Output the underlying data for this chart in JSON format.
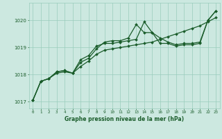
{
  "title": "Graphe pression niveau de la mer (hPa)",
  "background_color": "#cce8e0",
  "grid_color": "#99ccbb",
  "line_color": "#1a5c2a",
  "xlim": [
    -0.5,
    23.5
  ],
  "ylim": [
    1016.75,
    1020.65
  ],
  "yticks": [
    1017,
    1018,
    1019,
    1020
  ],
  "xticks": [
    0,
    1,
    2,
    3,
    4,
    5,
    6,
    7,
    8,
    9,
    10,
    11,
    12,
    13,
    14,
    15,
    16,
    17,
    18,
    19,
    20,
    21,
    22,
    23
  ],
  "series1_x": [
    0,
    1,
    2,
    3,
    4,
    5,
    6,
    7,
    8,
    9,
    10,
    11,
    12,
    13,
    14,
    15,
    16,
    17,
    18,
    19,
    20,
    21,
    22,
    23
  ],
  "series1_y": [
    1017.05,
    1017.75,
    1017.85,
    1018.05,
    1018.1,
    1018.05,
    1018.3,
    1018.5,
    1018.75,
    1018.9,
    1018.95,
    1019.0,
    1019.05,
    1019.1,
    1019.15,
    1019.2,
    1019.3,
    1019.4,
    1019.5,
    1019.6,
    1019.7,
    1019.8,
    1019.95,
    1020.1
  ],
  "series2_x": [
    0,
    1,
    2,
    3,
    4,
    5,
    6,
    7,
    8,
    9,
    10,
    11,
    12,
    13,
    14,
    15,
    16,
    17,
    18,
    19,
    20,
    21,
    22,
    23
  ],
  "series2_y": [
    1017.05,
    1017.75,
    1017.85,
    1018.1,
    1018.15,
    1018.05,
    1018.55,
    1018.7,
    1019.05,
    1019.15,
    1019.15,
    1019.2,
    1019.25,
    1019.3,
    1019.95,
    1019.55,
    1019.15,
    1019.15,
    1019.05,
    1019.1,
    1019.1,
    1019.15,
    1020.0,
    1020.35
  ],
  "series3_x": [
    0,
    1,
    2,
    3,
    4,
    5,
    6,
    7,
    8,
    9,
    10,
    11,
    12,
    13,
    14,
    15,
    16,
    17,
    18,
    19,
    20,
    21,
    22,
    23
  ],
  "series3_y": [
    1017.05,
    1017.75,
    1017.85,
    1018.1,
    1018.15,
    1018.05,
    1018.45,
    1018.6,
    1018.95,
    1019.2,
    1019.25,
    1019.25,
    1019.35,
    1019.85,
    1019.55,
    1019.55,
    1019.35,
    1019.2,
    1019.1,
    1019.15,
    1019.15,
    1019.2,
    1020.0,
    1020.35
  ]
}
